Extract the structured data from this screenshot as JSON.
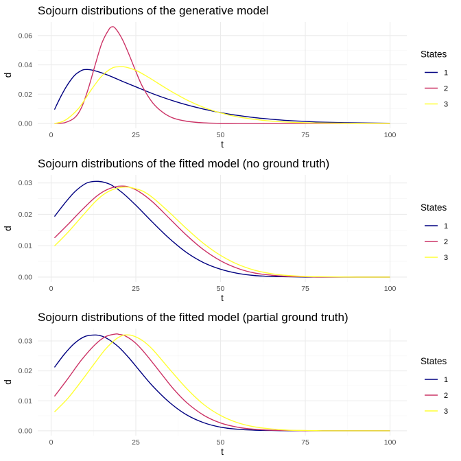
{
  "legend_title": "States",
  "colors": {
    "1": "#000080",
    "2": "#cc3366",
    "3": "#ffff33"
  },
  "chart_data": [
    {
      "type": "line",
      "title": "Sojourn distributions of the generative model",
      "xlabel": "t",
      "ylabel": "d",
      "xlim": [
        1,
        100
      ],
      "ylim": [
        0,
        0.066
      ],
      "xticks": [
        0,
        25,
        50,
        75,
        100
      ],
      "yticks": [
        0.0,
        0.02,
        0.04,
        0.06
      ],
      "ytick_labels": [
        "0.00",
        "0.02",
        "0.04",
        "0.06"
      ],
      "grid": true,
      "legend_position": "right",
      "series": [
        {
          "name": "1",
          "x": [
            1,
            3,
            5,
            7,
            9,
            10,
            12,
            15,
            18,
            21,
            25,
            30,
            35,
            40,
            45,
            50,
            55,
            60,
            65,
            70,
            75,
            80,
            90,
            100
          ],
          "y": [
            0.0095,
            0.019,
            0.027,
            0.033,
            0.0362,
            0.0368,
            0.0365,
            0.0345,
            0.0318,
            0.0288,
            0.025,
            0.0203,
            0.0162,
            0.0127,
            0.0098,
            0.0074,
            0.0055,
            0.004,
            0.0029,
            0.002,
            0.0014,
            0.0009,
            0.0004,
            0.0001
          ]
        },
        {
          "name": "2",
          "x": [
            1,
            4,
            7,
            9,
            11,
            13,
            15,
            17,
            18,
            19,
            21,
            23,
            25,
            27,
            30,
            33,
            36,
            40,
            45,
            50,
            55,
            60,
            70,
            80,
            100
          ],
          "y": [
            0.0,
            0.0005,
            0.004,
            0.011,
            0.024,
            0.04,
            0.055,
            0.064,
            0.066,
            0.0648,
            0.0575,
            0.047,
            0.0355,
            0.025,
            0.014,
            0.0075,
            0.0037,
            0.0015,
            0.0004,
            0.0001,
            0.0,
            0.0,
            0.0,
            0.0,
            0.0
          ]
        },
        {
          "name": "3",
          "x": [
            1,
            3,
            5,
            8,
            10,
            12,
            15,
            18,
            20,
            22,
            25,
            28,
            30,
            35,
            40,
            45,
            50,
            55,
            60,
            65,
            70,
            75,
            80,
            90,
            100
          ],
          "y": [
            0.0,
            0.001,
            0.0035,
            0.01,
            0.0165,
            0.0235,
            0.0325,
            0.0378,
            0.0387,
            0.0385,
            0.0363,
            0.0325,
            0.0297,
            0.0225,
            0.0161,
            0.011,
            0.0072,
            0.0045,
            0.0028,
            0.0016,
            0.0009,
            0.0005,
            0.0003,
            0.0001,
            0.0
          ]
        }
      ]
    },
    {
      "type": "line",
      "title": "Sojourn distributions of the fitted model (no ground truth)",
      "xlabel": "t",
      "ylabel": "d",
      "xlim": [
        1,
        100
      ],
      "ylim": [
        0,
        0.031
      ],
      "xticks": [
        0,
        25,
        50,
        75,
        100
      ],
      "yticks": [
        0.0,
        0.01,
        0.02,
        0.03
      ],
      "ytick_labels": [
        "0.00",
        "0.01",
        "0.02",
        "0.03"
      ],
      "grid": true,
      "legend_position": "right",
      "series": [
        {
          "name": "1",
          "x": [
            1,
            4,
            7,
            10,
            12,
            14,
            16,
            18,
            21,
            25,
            30,
            35,
            40,
            45,
            50,
            55,
            60,
            65,
            70,
            75,
            80,
            90,
            100
          ],
          "y": [
            0.0193,
            0.0235,
            0.0272,
            0.0297,
            0.0304,
            0.0305,
            0.0301,
            0.0292,
            0.0269,
            0.0229,
            0.0174,
            0.0122,
            0.0078,
            0.0046,
            0.0025,
            0.0012,
            0.0005,
            0.0002,
            0.0001,
            0.0,
            0.0,
            0.0,
            0.0
          ]
        },
        {
          "name": "2",
          "x": [
            1,
            5,
            9,
            13,
            16,
            19,
            21,
            23,
            26,
            30,
            35,
            40,
            45,
            50,
            55,
            60,
            65,
            70,
            75,
            80,
            90,
            100
          ],
          "y": [
            0.0125,
            0.0168,
            0.0213,
            0.0254,
            0.0276,
            0.0288,
            0.029,
            0.0287,
            0.0272,
            0.0239,
            0.0186,
            0.0133,
            0.0087,
            0.0052,
            0.0028,
            0.0013,
            0.0006,
            0.0002,
            0.0001,
            0.0,
            0.0,
            0.0
          ]
        },
        {
          "name": "3",
          "x": [
            1,
            5,
            9,
            13,
            16,
            19,
            22,
            24,
            27,
            30,
            35,
            40,
            45,
            50,
            55,
            60,
            65,
            70,
            75,
            80,
            90,
            100
          ],
          "y": [
            0.0099,
            0.0143,
            0.0192,
            0.024,
            0.0267,
            0.0282,
            0.0287,
            0.0284,
            0.0274,
            0.0253,
            0.0205,
            0.0154,
            0.0107,
            0.0069,
            0.0041,
            0.0022,
            0.0011,
            0.0005,
            0.0002,
            0.0001,
            0.0,
            0.0
          ]
        }
      ]
    },
    {
      "type": "line",
      "title": "Sojourn distributions of the fitted model (partial ground truth)",
      "xlabel": "t",
      "ylabel": "d",
      "xlim": [
        1,
        100
      ],
      "ylim": [
        0,
        0.0325
      ],
      "xticks": [
        0,
        25,
        50,
        75,
        100
      ],
      "yticks": [
        0.0,
        0.01,
        0.02,
        0.03
      ],
      "ytick_labels": [
        "0.00",
        "0.01",
        "0.02",
        "0.03"
      ],
      "grid": true,
      "legend_position": "right",
      "series": [
        {
          "name": "1",
          "x": [
            1,
            4,
            7,
            10,
            13,
            15,
            17,
            20,
            23,
            26,
            30,
            35,
            40,
            45,
            50,
            55,
            60,
            65,
            70,
            75,
            80,
            90,
            100
          ],
          "y": [
            0.0212,
            0.0257,
            0.0293,
            0.0315,
            0.032,
            0.0316,
            0.0305,
            0.0279,
            0.0243,
            0.0202,
            0.0149,
            0.0094,
            0.0053,
            0.0027,
            0.0012,
            0.0005,
            0.0002,
            0.0001,
            0.0,
            0.0,
            0.0,
            0.0,
            0.0
          ]
        },
        {
          "name": "2",
          "x": [
            1,
            5,
            9,
            13,
            16,
            19,
            20,
            22,
            25,
            28,
            32,
            36,
            40,
            45,
            50,
            55,
            60,
            65,
            70,
            75,
            80,
            90,
            100
          ],
          "y": [
            0.0115,
            0.0175,
            0.0237,
            0.0288,
            0.0314,
            0.0323,
            0.0322,
            0.0316,
            0.0292,
            0.0255,
            0.0198,
            0.0141,
            0.0094,
            0.0052,
            0.0026,
            0.0012,
            0.0005,
            0.0002,
            0.0001,
            0.0,
            0.0,
            0.0,
            0.0
          ]
        },
        {
          "name": "3",
          "x": [
            1,
            5,
            9,
            13,
            16,
            19,
            21,
            22,
            24,
            27,
            30,
            35,
            40,
            45,
            50,
            55,
            60,
            65,
            70,
            75,
            80,
            90,
            100
          ],
          "y": [
            0.0063,
            0.0109,
            0.0167,
            0.0228,
            0.0272,
            0.0305,
            0.0318,
            0.032,
            0.0318,
            0.0301,
            0.0271,
            0.0205,
            0.0141,
            0.0088,
            0.0051,
            0.0027,
            0.0013,
            0.0006,
            0.0002,
            0.0001,
            0.0,
            0.0,
            0.0
          ]
        }
      ]
    }
  ]
}
